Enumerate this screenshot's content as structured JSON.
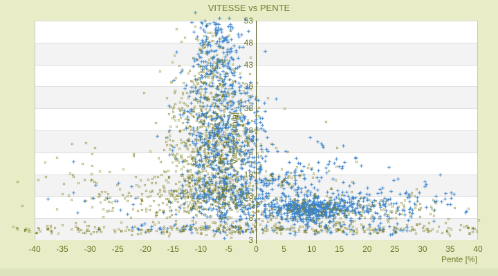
{
  "chart_data": {
    "type": "scatter",
    "title": "VITESSE vs PENTE",
    "xlabel": "Pente [%]",
    "ylabel": "Vitesse [km/h]",
    "xlim": [
      -40,
      40
    ],
    "ylim": [
      3,
      53
    ],
    "xticks": [
      "-40",
      "-35",
      "-30",
      "-25",
      "-20",
      "-15",
      "-10",
      "-5",
      "0",
      "5",
      "10",
      "15",
      "20",
      "25",
      "30",
      "35",
      "40"
    ],
    "yticks": [
      "53",
      "48",
      "43",
      "38",
      "33",
      "28",
      "23",
      "18",
      "13",
      "8",
      "3"
    ],
    "grid": "horizontal-zebra-bands",
    "legend": "none",
    "colors": {
      "background": "#e8edc8",
      "title_text": "#6e7d2a",
      "tick_text": "#6c7626",
      "zero_axis_line": "#4c521c",
      "band_white": "#ffffff",
      "band_gray": "#f3f3f3",
      "grid_line": "#dddddd",
      "plot_border": "#c8c8c8",
      "series_blue": "#3d85cb",
      "series_olive_dark": "#72721c",
      "series_olive_center": "#b6b74b",
      "bottom_strip": "#dde4bd"
    },
    "series": [
      {
        "name": "blue-points",
        "marker": "plus",
        "color": "#3d85cb",
        "clusters": [
          {
            "n": 260,
            "x": -5,
            "sx": 4.5,
            "y": 12,
            "sy": 3
          },
          {
            "n": 240,
            "x": -5,
            "sx": 4.5,
            "y": 19,
            "sy": 4
          },
          {
            "n": 200,
            "x": -6,
            "sx": 4,
            "y": 27,
            "sy": 4
          },
          {
            "n": 160,
            "x": -6.5,
            "sx": 3.5,
            "y": 35,
            "sy": 4
          },
          {
            "n": 120,
            "x": -7,
            "sx": 3,
            "y": 43,
            "sy": 3.5
          },
          {
            "n": 60,
            "x": -7,
            "sx": 2.5,
            "y": 50,
            "sy": 2
          },
          {
            "n": 380,
            "x": 9,
            "sx": 3.5,
            "y": 10,
            "sy": 1.4
          },
          {
            "n": 160,
            "x": 16,
            "sx": 4,
            "y": 10.5,
            "sy": 1.8
          },
          {
            "n": 60,
            "x": 25,
            "sx": 4,
            "y": 11,
            "sy": 2
          },
          {
            "n": 15,
            "x": 32,
            "sx": 3,
            "y": 12.5,
            "sy": 2.5
          },
          {
            "n": 70,
            "x": 6,
            "sx": 5,
            "y": 16,
            "sy": 2.5
          },
          {
            "n": 25,
            "x": 12,
            "sx": 6,
            "y": 20,
            "sy": 3
          },
          {
            "n": 20,
            "x": -24,
            "sx": 7,
            "y": 11,
            "sy": 3
          },
          {
            "n": 90,
            "x0": -22,
            "x1": 28,
            "y": 5.6,
            "sy": 0.7
          }
        ],
        "extra_points": [
          [
            34,
            12.5
          ],
          [
            11,
            25.5
          ],
          [
            11.7,
            25
          ],
          [
            -33,
            21
          ],
          [
            25.5,
            17
          ]
        ]
      },
      {
        "name": "olive-points",
        "marker": "x-diamond",
        "color": "#72721c",
        "center_color": "#b6b74b",
        "clusters": [
          {
            "n": 280,
            "x": -8,
            "sx": 5.5,
            "y": 12,
            "sy": 3
          },
          {
            "n": 260,
            "x": -8,
            "sx": 5,
            "y": 19,
            "sy": 4
          },
          {
            "n": 210,
            "x": -8,
            "sx": 4.5,
            "y": 27,
            "sy": 4
          },
          {
            "n": 150,
            "x": -8.5,
            "sx": 4,
            "y": 35,
            "sy": 3.5
          },
          {
            "n": 80,
            "x": -8.5,
            "sx": 3,
            "y": 43,
            "sy": 3
          },
          {
            "n": 20,
            "x": -9,
            "sx": 2.5,
            "y": 48.5,
            "sy": 1.5
          },
          {
            "n": 80,
            "x": -25,
            "sx": 7.5,
            "y": 12.5,
            "sy": 3.5
          },
          {
            "n": 12,
            "x": -31,
            "sx": 4,
            "y": 21,
            "sy": 2.5
          },
          {
            "n": 150,
            "x": 12,
            "sx": 7,
            "y": 9.5,
            "sy": 1.8
          },
          {
            "n": 50,
            "x": 26,
            "sx": 6,
            "y": 10.5,
            "sy": 2
          },
          {
            "n": 40,
            "x": 7,
            "sx": 5,
            "y": 16,
            "sy": 2.5
          },
          {
            "n": 230,
            "x0": -44,
            "x1": 40,
            "y": 5.5,
            "sy": 0.6
          },
          {
            "n": 80,
            "x0": -15,
            "x1": 20,
            "y": 5.6,
            "sy": 0.5
          }
        ],
        "extra_points": [
          [
            14.5,
            24
          ],
          [
            -33,
            17.5
          ],
          [
            12.5,
            30
          ],
          [
            -36,
            10
          ],
          [
            18,
            21
          ],
          [
            5,
            33
          ]
        ]
      }
    ]
  }
}
